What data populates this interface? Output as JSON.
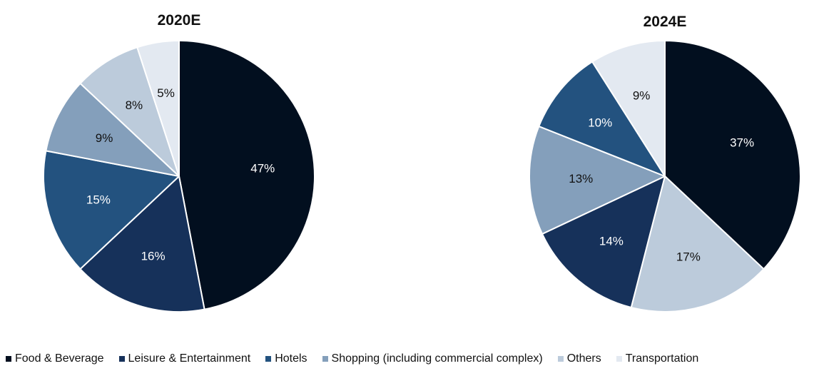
{
  "colors": {
    "food_beverage": "#020f1f",
    "leisure_entertainment": "#16315a",
    "hotels": "#23527f",
    "shopping": "#849fbb",
    "others": "#bccbdb",
    "transportation": "#e3e9f1"
  },
  "chart_data": [
    {
      "type": "pie",
      "title": "2020E",
      "slices": [
        {
          "name": "Food & Beverage",
          "value": 47,
          "label": "47%",
          "color": "#020f1f"
        },
        {
          "name": "Leisure & Entertainment",
          "value": 16,
          "label": "16%",
          "color": "#16315a"
        },
        {
          "name": "Hotels",
          "value": 15,
          "label": "15%",
          "color": "#23527f"
        },
        {
          "name": "Shopping (including commercial complex)",
          "value": 9,
          "label": "9%",
          "color": "#849fbb"
        },
        {
          "name": "Others",
          "value": 8,
          "label": "8%",
          "color": "#bccbdb"
        },
        {
          "name": "Transportation",
          "value": 5,
          "label": "5%",
          "color": "#e3e9f1"
        }
      ]
    },
    {
      "type": "pie",
      "title": "2024E",
      "slices": [
        {
          "name": "Food & Beverage",
          "value": 37,
          "label": "37%",
          "color": "#020f1f"
        },
        {
          "name": "Others",
          "value": 17,
          "label": "17%",
          "color": "#bccbdb"
        },
        {
          "name": "Leisure & Entertainment",
          "value": 14,
          "label": "14%",
          "color": "#16315a"
        },
        {
          "name": "Shopping (including commercial complex)",
          "value": 13,
          "label": "13%",
          "color": "#849fbb"
        },
        {
          "name": "Hotels",
          "value": 10,
          "label": "10%",
          "color": "#23527f"
        },
        {
          "name": "Transportation",
          "value": 9,
          "label": "9%",
          "color": "#e3e9f1"
        }
      ]
    }
  ],
  "legend": {
    "items": [
      {
        "label": "Food & Beverage",
        "color": "#020f1f"
      },
      {
        "label": "Leisure & Entertainment",
        "color": "#16315a"
      },
      {
        "label": "Hotels",
        "color": "#23527f"
      },
      {
        "label": "Shopping (including commercial complex)",
        "color": "#849fbb"
      },
      {
        "label": "Others",
        "color": "#bccbdb"
      },
      {
        "label": "Transportation",
        "color": "#e3e9f1"
      }
    ],
    "placement": "bottom"
  }
}
